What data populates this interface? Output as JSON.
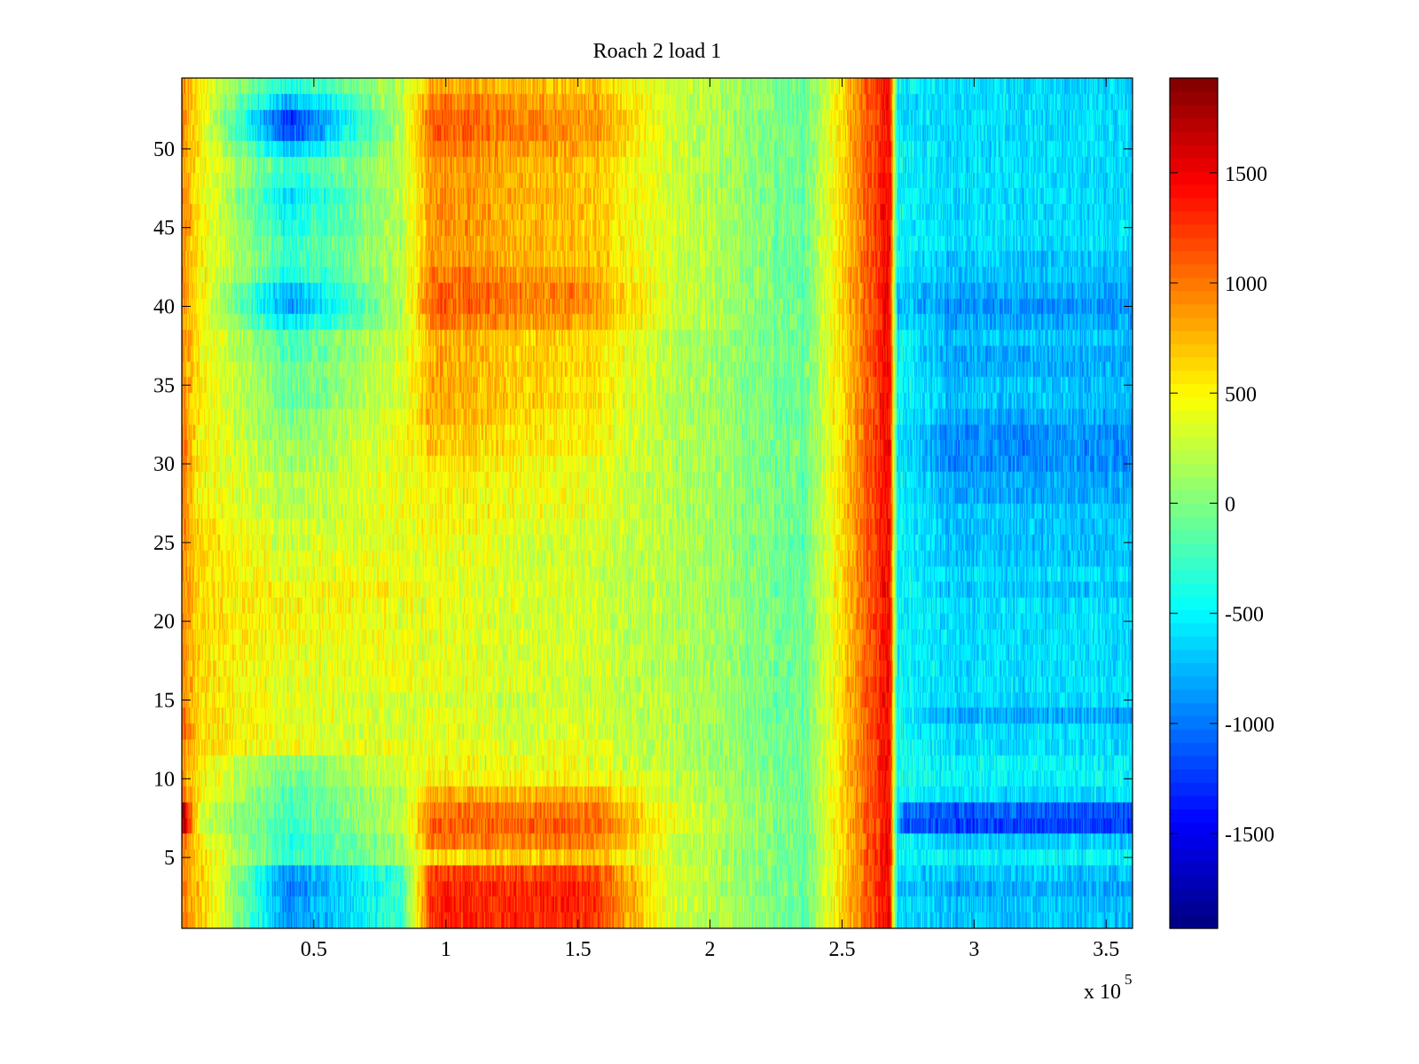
{
  "chart_data": {
    "type": "heatmap",
    "title": "Roach 2 load 1",
    "xlabel": "",
    "ylabel": "",
    "x_multiplier_label": "x 10",
    "x_multiplier_exponent": "5",
    "xlim": [
      0,
      3.6
    ],
    "ylim": [
      0.5,
      54.5
    ],
    "x_ticks": [
      {
        "value": 0.5,
        "label": "0.5"
      },
      {
        "value": 1,
        "label": "1"
      },
      {
        "value": 1.5,
        "label": "1.5"
      },
      {
        "value": 2,
        "label": "2"
      },
      {
        "value": 2.5,
        "label": "2.5"
      },
      {
        "value": 3,
        "label": "3"
      },
      {
        "value": 3.5,
        "label": "3.5"
      }
    ],
    "y_ticks": [
      {
        "value": 5,
        "label": "5"
      },
      {
        "value": 10,
        "label": "10"
      },
      {
        "value": 15,
        "label": "15"
      },
      {
        "value": 20,
        "label": "20"
      },
      {
        "value": 25,
        "label": "25"
      },
      {
        "value": 30,
        "label": "30"
      },
      {
        "value": 35,
        "label": "35"
      },
      {
        "value": 40,
        "label": "40"
      },
      {
        "value": 45,
        "label": "45"
      },
      {
        "value": 50,
        "label": "50"
      }
    ],
    "colorbar": {
      "colormap": "jet",
      "clim": [
        -1930,
        1930
      ],
      "ticks": [
        {
          "value": 1500,
          "label": "1500"
        },
        {
          "value": 1000,
          "label": "1000"
        },
        {
          "value": 500,
          "label": "500"
        },
        {
          "value": 0,
          "label": "0"
        },
        {
          "value": -500,
          "label": "-500"
        },
        {
          "value": -1000,
          "label": "-1000"
        },
        {
          "value": -1500,
          "label": "-1500"
        }
      ]
    },
    "grid": false,
    "rows": 54,
    "x_breakpoints": [
      0.0,
      0.07,
      0.4,
      0.83,
      0.95,
      1.55,
      1.85,
      2.35,
      2.68,
      2.71,
      2.73,
      2.9,
      3.6
    ],
    "row_profiles": [
      {
        "row": 1,
        "values": [
          900,
          700,
          -900,
          -300,
          1300,
          1300,
          300,
          -100,
          1500,
          -600,
          -600,
          -700,
          -700
        ]
      },
      {
        "row": 2,
        "values": [
          900,
          700,
          -900,
          -300,
          1300,
          1300,
          300,
          -100,
          1500,
          -600,
          -600,
          -700,
          -700
        ]
      },
      {
        "row": 3,
        "values": [
          900,
          700,
          -1000,
          -300,
          1300,
          1300,
          300,
          -100,
          1500,
          -700,
          -700,
          -800,
          -800
        ]
      },
      {
        "row": 4,
        "values": [
          900,
          700,
          -900,
          -300,
          1200,
          1200,
          300,
          -100,
          1500,
          -600,
          -600,
          -700,
          -700
        ]
      },
      {
        "row": 5,
        "values": [
          900,
          600,
          -300,
          100,
          600,
          700,
          300,
          -100,
          1500,
          -500,
          -500,
          -500,
          -500
        ]
      },
      {
        "row": 6,
        "values": [
          1000,
          500,
          -300,
          100,
          1000,
          1000,
          300,
          -100,
          1500,
          -500,
          -500,
          -700,
          -700
        ]
      },
      {
        "row": 7,
        "values": [
          1800,
          300,
          -300,
          200,
          1100,
          1100,
          400,
          -100,
          1500,
          -700,
          -1100,
          -1200,
          -1200
        ]
      },
      {
        "row": 8,
        "values": [
          1800,
          300,
          -200,
          200,
          1000,
          1000,
          400,
          -100,
          1500,
          -700,
          -1000,
          -1100,
          -1100
        ]
      },
      {
        "row": 9,
        "values": [
          1000,
          500,
          -200,
          200,
          800,
          800,
          300,
          -100,
          1500,
          -500,
          -500,
          -600,
          -600
        ]
      },
      {
        "row": 10,
        "values": [
          900,
          500,
          -100,
          300,
          500,
          500,
          300,
          -100,
          1500,
          -400,
          -400,
          -500,
          -500
        ]
      },
      {
        "row": 11,
        "values": [
          900,
          500,
          0,
          300,
          500,
          400,
          200,
          -100,
          1500,
          -400,
          -400,
          -500,
          -500
        ]
      },
      {
        "row": 12,
        "values": [
          900,
          600,
          400,
          400,
          400,
          400,
          200,
          -100,
          1500,
          -400,
          -400,
          -600,
          -600
        ]
      },
      {
        "row": 13,
        "values": [
          1000,
          600,
          400,
          300,
          400,
          300,
          200,
          -100,
          1500,
          -500,
          -500,
          -600,
          -600
        ]
      },
      {
        "row": 14,
        "values": [
          1000,
          600,
          400,
          300,
          400,
          300,
          200,
          -100,
          1500,
          -500,
          -500,
          -800,
          -800
        ]
      },
      {
        "row": 15,
        "values": [
          900,
          600,
          400,
          300,
          300,
          300,
          200,
          -100,
          1500,
          -500,
          -500,
          -600,
          -600
        ]
      },
      {
        "row": 16,
        "values": [
          900,
          600,
          400,
          400,
          400,
          300,
          200,
          -100,
          1500,
          -500,
          -500,
          -600,
          -600
        ]
      },
      {
        "row": 17,
        "values": [
          900,
          600,
          400,
          400,
          400,
          300,
          200,
          -100,
          1500,
          -500,
          -500,
          -600,
          -600
        ]
      },
      {
        "row": 18,
        "values": [
          900,
          600,
          400,
          400,
          400,
          300,
          200,
          -100,
          1500,
          -500,
          -500,
          -600,
          -600
        ]
      },
      {
        "row": 19,
        "values": [
          900,
          600,
          500,
          400,
          400,
          300,
          200,
          -100,
          1500,
          -500,
          -500,
          -600,
          -600
        ]
      },
      {
        "row": 20,
        "values": [
          900,
          600,
          500,
          400,
          400,
          300,
          200,
          -100,
          1500,
          -500,
          -500,
          -600,
          -600
        ]
      },
      {
        "row": 21,
        "values": [
          900,
          600,
          500,
          400,
          400,
          300,
          200,
          -100,
          1500,
          -500,
          -500,
          -600,
          -600
        ]
      },
      {
        "row": 22,
        "values": [
          900,
          600,
          500,
          500,
          400,
          300,
          200,
          -100,
          1500,
          -500,
          -500,
          -700,
          -700
        ]
      },
      {
        "row": 23,
        "values": [
          900,
          600,
          400,
          400,
          400,
          300,
          200,
          -100,
          1500,
          -500,
          -500,
          -600,
          -600
        ]
      },
      {
        "row": 24,
        "values": [
          900,
          600,
          400,
          400,
          400,
          300,
          200,
          -100,
          1500,
          -500,
          -500,
          -700,
          -700
        ]
      },
      {
        "row": 25,
        "values": [
          900,
          600,
          300,
          400,
          400,
          300,
          200,
          -100,
          1500,
          -500,
          -500,
          -700,
          -700
        ]
      },
      {
        "row": 26,
        "values": [
          900,
          600,
          300,
          400,
          500,
          300,
          200,
          -100,
          1500,
          -500,
          -500,
          -700,
          -700
        ]
      },
      {
        "row": 27,
        "values": [
          900,
          500,
          200,
          400,
          500,
          400,
          200,
          -100,
          1500,
          -500,
          -500,
          -700,
          -700
        ]
      },
      {
        "row": 28,
        "values": [
          900,
          500,
          200,
          400,
          500,
          400,
          200,
          -100,
          1500,
          -500,
          -500,
          -800,
          -800
        ]
      },
      {
        "row": 29,
        "values": [
          900,
          500,
          200,
          400,
          500,
          400,
          200,
          -100,
          1500,
          -500,
          -500,
          -800,
          -800
        ]
      },
      {
        "row": 30,
        "values": [
          1000,
          500,
          100,
          400,
          600,
          400,
          200,
          -100,
          1500,
          -600,
          -600,
          -900,
          -900
        ]
      },
      {
        "row": 31,
        "values": [
          1000,
          500,
          100,
          400,
          700,
          500,
          200,
          -100,
          1500,
          -600,
          -600,
          -900,
          -900
        ]
      },
      {
        "row": 32,
        "values": [
          1000,
          500,
          0,
          400,
          700,
          500,
          200,
          -100,
          1500,
          -600,
          -600,
          -900,
          -900
        ]
      },
      {
        "row": 33,
        "values": [
          900,
          500,
          0,
          400,
          800,
          500,
          200,
          -100,
          1500,
          -500,
          -500,
          -800,
          -800
        ]
      },
      {
        "row": 34,
        "values": [
          900,
          500,
          -100,
          300,
          800,
          600,
          200,
          -100,
          1500,
          -500,
          -500,
          -700,
          -700
        ]
      },
      {
        "row": 35,
        "values": [
          900,
          500,
          -100,
          300,
          800,
          600,
          200,
          -100,
          1500,
          -500,
          -500,
          -700,
          -700
        ]
      },
      {
        "row": 36,
        "values": [
          900,
          500,
          -100,
          300,
          800,
          600,
          200,
          -100,
          1500,
          -500,
          -500,
          -800,
          -800
        ]
      },
      {
        "row": 37,
        "values": [
          900,
          500,
          -200,
          300,
          800,
          600,
          200,
          -100,
          1500,
          -500,
          -500,
          -800,
          -800
        ]
      },
      {
        "row": 38,
        "values": [
          900,
          500,
          -200,
          300,
          800,
          600,
          200,
          -100,
          1500,
          -500,
          -500,
          -700,
          -700
        ]
      },
      {
        "row": 39,
        "values": [
          900,
          500,
          -600,
          200,
          1000,
          800,
          300,
          -100,
          1500,
          -600,
          -600,
          -800,
          -800
        ]
      },
      {
        "row": 40,
        "values": [
          900,
          500,
          -900,
          200,
          1100,
          900,
          300,
          -100,
          1500,
          -700,
          -700,
          -900,
          -900
        ]
      },
      {
        "row": 41,
        "values": [
          900,
          500,
          -800,
          200,
          1100,
          900,
          300,
          -100,
          1500,
          -700,
          -700,
          -800,
          -800
        ]
      },
      {
        "row": 42,
        "values": [
          900,
          500,
          -400,
          200,
          1000,
          800,
          300,
          -100,
          1500,
          -600,
          -600,
          -700,
          -700
        ]
      },
      {
        "row": 43,
        "values": [
          900,
          500,
          -300,
          200,
          900,
          700,
          300,
          -100,
          1500,
          -500,
          -500,
          -700,
          -700
        ]
      },
      {
        "row": 44,
        "values": [
          900,
          500,
          -300,
          200,
          900,
          700,
          300,
          -100,
          1500,
          -500,
          -500,
          -600,
          -600
        ]
      },
      {
        "row": 45,
        "values": [
          900,
          500,
          -400,
          200,
          900,
          700,
          300,
          -100,
          1500,
          -500,
          -500,
          -600,
          -600
        ]
      },
      {
        "row": 46,
        "values": [
          900,
          500,
          -500,
          200,
          900,
          700,
          300,
          -100,
          1500,
          -500,
          -500,
          -600,
          -600
        ]
      },
      {
        "row": 47,
        "values": [
          900,
          500,
          -600,
          200,
          900,
          700,
          300,
          -100,
          1500,
          -500,
          -500,
          -600,
          -600
        ]
      },
      {
        "row": 48,
        "values": [
          900,
          500,
          -400,
          200,
          900,
          700,
          300,
          -100,
          1500,
          -500,
          -500,
          -600,
          -600
        ]
      },
      {
        "row": 49,
        "values": [
          900,
          500,
          -300,
          200,
          900,
          700,
          300,
          -100,
          1500,
          -500,
          -500,
          -600,
          -600
        ]
      },
      {
        "row": 50,
        "values": [
          900,
          500,
          -700,
          200,
          1000,
          800,
          300,
          -100,
          1500,
          -500,
          -500,
          -600,
          -600
        ]
      },
      {
        "row": 51,
        "values": [
          900,
          500,
          -1200,
          200,
          1100,
          900,
          300,
          -100,
          1500,
          -600,
          -600,
          -600,
          -600
        ]
      },
      {
        "row": 52,
        "values": [
          900,
          500,
          -1300,
          200,
          1100,
          900,
          300,
          -100,
          1500,
          -600,
          -600,
          -600,
          -600
        ]
      },
      {
        "row": 53,
        "values": [
          900,
          500,
          -800,
          200,
          1000,
          800,
          300,
          -100,
          1500,
          -600,
          -600,
          -600,
          -600
        ]
      },
      {
        "row": 54,
        "values": [
          900,
          500,
          -400,
          200,
          800,
          700,
          300,
          -100,
          1500,
          -500,
          -500,
          -600,
          -600
        ]
      }
    ]
  }
}
